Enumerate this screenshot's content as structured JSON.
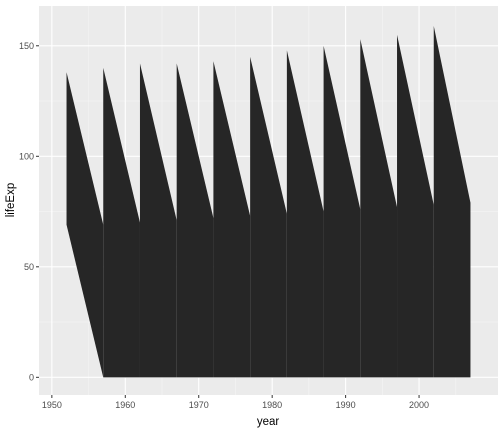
{
  "chart_data": {
    "type": "area",
    "xlabel": "year",
    "ylabel": "lifeExp",
    "xlim": [
      1948.25,
      2010.75
    ],
    "ylim": [
      -8,
      168
    ],
    "x_ticks": [
      1950,
      1960,
      1970,
      1980,
      1990,
      2000
    ],
    "x_tick_labels": [
      "1950",
      "1960",
      "1970",
      "1980",
      "1990",
      "2000"
    ],
    "y_ticks": [
      0,
      50,
      100,
      150
    ],
    "y_tick_labels": [
      "0",
      "50",
      "100",
      "150"
    ],
    "grid": true,
    "legend": "none",
    "series": [
      {
        "x": [
          1952,
          1957,
          1962,
          1967,
          1972,
          1977,
          1982,
          1987,
          1992,
          1997,
          2002,
          2007
        ],
        "y": [
          138,
          140,
          142,
          142,
          143,
          145,
          148,
          150,
          153,
          155,
          159,
          80
        ],
        "y_base": [
          69,
          0,
          0,
          0,
          0,
          0,
          0,
          0,
          0,
          0,
          0,
          0
        ],
        "jump_bottom": [
          69,
          70,
          71,
          72,
          73,
          74,
          75,
          76,
          77,
          78,
          79
        ]
      }
    ],
    "colors": {
      "panel_background": "#ebebeb",
      "grid_major": "#ffffff",
      "grid_minor": "#f5f5f5",
      "fill": "#262626"
    }
  }
}
